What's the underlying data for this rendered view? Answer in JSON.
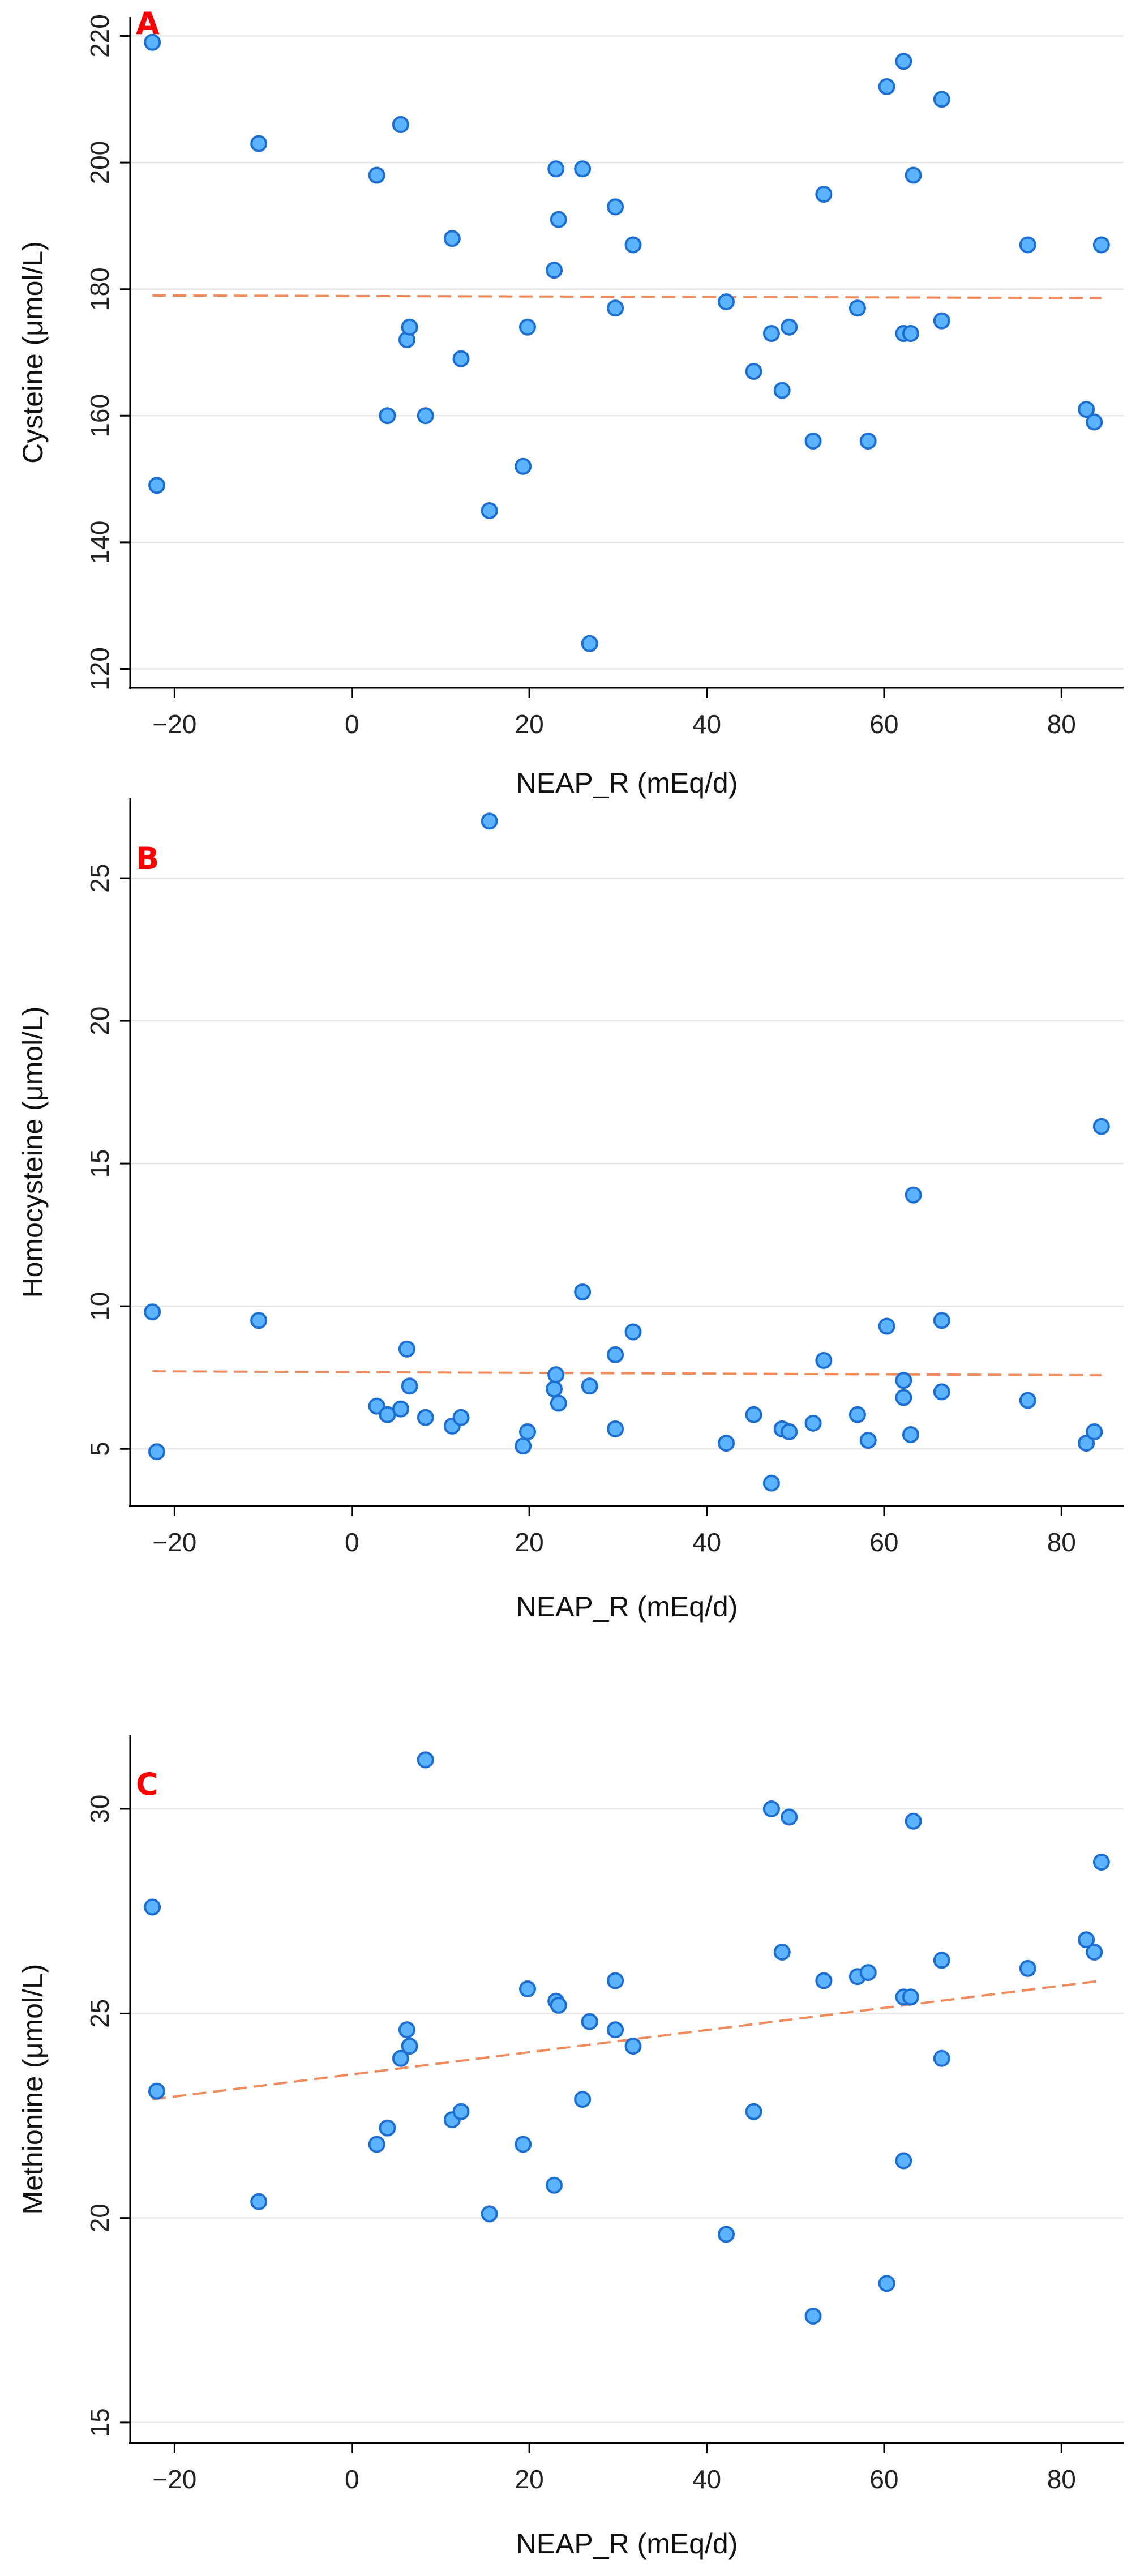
{
  "chart_data": [
    {
      "type": "scatter",
      "panel_label": "A",
      "xlabel": "NEAP_R (mEq/d)",
      "ylabel": "Cysteine (μmol/L)",
      "xlim": [
        -25,
        87
      ],
      "ylim": [
        117,
        223
      ],
      "xticks": [
        -20,
        0,
        20,
        40,
        60,
        80
      ],
      "yticks": [
        120,
        140,
        160,
        180,
        200,
        220
      ],
      "trendline": {
        "x": [
          -22.5,
          84.5
        ],
        "y": [
          179.0,
          178.6
        ],
        "style": "dashed",
        "color": "#f08a5d"
      },
      "points": [
        {
          "x": -22.5,
          "y": 219
        },
        {
          "x": -22.0,
          "y": 149
        },
        {
          "x": -10.5,
          "y": 203
        },
        {
          "x": 2.8,
          "y": 198
        },
        {
          "x": 4.0,
          "y": 160
        },
        {
          "x": 5.5,
          "y": 206
        },
        {
          "x": 6.2,
          "y": 172
        },
        {
          "x": 6.5,
          "y": 174
        },
        {
          "x": 8.3,
          "y": 160
        },
        {
          "x": 11.3,
          "y": 188
        },
        {
          "x": 12.3,
          "y": 169
        },
        {
          "x": 15.5,
          "y": 145
        },
        {
          "x": 19.3,
          "y": 152
        },
        {
          "x": 19.8,
          "y": 174
        },
        {
          "x": 22.8,
          "y": 183
        },
        {
          "x": 23.0,
          "y": 199
        },
        {
          "x": 23.3,
          "y": 191
        },
        {
          "x": 26.0,
          "y": 199
        },
        {
          "x": 26.8,
          "y": 124
        },
        {
          "x": 29.7,
          "y": 193
        },
        {
          "x": 29.7,
          "y": 177
        },
        {
          "x": 31.7,
          "y": 187
        },
        {
          "x": 42.2,
          "y": 178
        },
        {
          "x": 45.3,
          "y": 167
        },
        {
          "x": 47.3,
          "y": 173
        },
        {
          "x": 48.5,
          "y": 164
        },
        {
          "x": 49.3,
          "y": 174
        },
        {
          "x": 52.0,
          "y": 156
        },
        {
          "x": 53.2,
          "y": 195
        },
        {
          "x": 57.0,
          "y": 177
        },
        {
          "x": 58.2,
          "y": 156
        },
        {
          "x": 60.3,
          "y": 212
        },
        {
          "x": 62.2,
          "y": 216
        },
        {
          "x": 62.2,
          "y": 173
        },
        {
          "x": 63.0,
          "y": 173
        },
        {
          "x": 63.3,
          "y": 198
        },
        {
          "x": 66.5,
          "y": 210
        },
        {
          "x": 66.5,
          "y": 175
        },
        {
          "x": 76.2,
          "y": 187
        },
        {
          "x": 82.8,
          "y": 161
        },
        {
          "x": 83.7,
          "y": 159
        },
        {
          "x": 84.5,
          "y": 187
        }
      ]
    },
    {
      "type": "scatter",
      "panel_label": "B",
      "xlabel": "NEAP_R (mEq/d)",
      "ylabel": "Homocysteine (μmol/L)",
      "xlim": [
        -25,
        87
      ],
      "ylim": [
        3.0,
        27.8
      ],
      "xticks": [
        -20,
        0,
        20,
        40,
        60,
        80
      ],
      "yticks": [
        5,
        10,
        15,
        20,
        25
      ],
      "trendline": {
        "x": [
          -22.5,
          84.5
        ],
        "y": [
          7.72,
          7.58
        ],
        "style": "dashed",
        "color": "#f08a5d"
      },
      "points": [
        {
          "x": -22.5,
          "y": 9.8
        },
        {
          "x": -22.0,
          "y": 4.9
        },
        {
          "x": -10.5,
          "y": 9.5
        },
        {
          "x": 2.8,
          "y": 6.5
        },
        {
          "x": 4.0,
          "y": 6.2
        },
        {
          "x": 5.5,
          "y": 6.4
        },
        {
          "x": 6.2,
          "y": 8.5
        },
        {
          "x": 6.5,
          "y": 7.2
        },
        {
          "x": 8.3,
          "y": 6.1
        },
        {
          "x": 11.3,
          "y": 5.8
        },
        {
          "x": 12.3,
          "y": 6.1
        },
        {
          "x": 15.5,
          "y": 27.0
        },
        {
          "x": 19.3,
          "y": 5.1
        },
        {
          "x": 19.8,
          "y": 5.6
        },
        {
          "x": 22.8,
          "y": 7.1
        },
        {
          "x": 23.0,
          "y": 7.6
        },
        {
          "x": 23.3,
          "y": 6.6
        },
        {
          "x": 26.0,
          "y": 10.5
        },
        {
          "x": 26.8,
          "y": 7.2
        },
        {
          "x": 29.7,
          "y": 8.3
        },
        {
          "x": 29.7,
          "y": 5.7
        },
        {
          "x": 31.7,
          "y": 9.1
        },
        {
          "x": 42.2,
          "y": 5.2
        },
        {
          "x": 45.3,
          "y": 6.2
        },
        {
          "x": 47.3,
          "y": 3.8
        },
        {
          "x": 48.5,
          "y": 5.7
        },
        {
          "x": 49.3,
          "y": 5.6
        },
        {
          "x": 52.0,
          "y": 5.9
        },
        {
          "x": 53.2,
          "y": 8.1
        },
        {
          "x": 57.0,
          "y": 6.2
        },
        {
          "x": 58.2,
          "y": 5.3
        },
        {
          "x": 60.3,
          "y": 9.3
        },
        {
          "x": 62.2,
          "y": 7.4
        },
        {
          "x": 62.2,
          "y": 6.8
        },
        {
          "x": 63.0,
          "y": 5.5
        },
        {
          "x": 63.3,
          "y": 13.9
        },
        {
          "x": 66.5,
          "y": 9.5
        },
        {
          "x": 66.5,
          "y": 7.0
        },
        {
          "x": 76.2,
          "y": 6.7
        },
        {
          "x": 82.8,
          "y": 5.2
        },
        {
          "x": 83.7,
          "y": 5.6
        },
        {
          "x": 84.5,
          "y": 16.3
        }
      ]
    },
    {
      "type": "scatter",
      "panel_label": "C",
      "xlabel": "NEAP_R (mEq/d)",
      "ylabel": "Methionine (μmol/L)",
      "xlim": [
        -25,
        87
      ],
      "ylim": [
        14.5,
        31.8
      ],
      "xticks": [
        -20,
        0,
        20,
        40,
        60,
        80
      ],
      "yticks": [
        15,
        20,
        25,
        30
      ],
      "trendline": {
        "x": [
          -22.5,
          84.5
        ],
        "y": [
          22.9,
          25.8
        ],
        "style": "dashed",
        "color": "#f08a5d"
      },
      "points": [
        {
          "x": -22.5,
          "y": 27.6
        },
        {
          "x": -22.0,
          "y": 23.1
        },
        {
          "x": -10.5,
          "y": 20.4
        },
        {
          "x": 2.8,
          "y": 21.8
        },
        {
          "x": 4.0,
          "y": 22.2
        },
        {
          "x": 5.5,
          "y": 23.9
        },
        {
          "x": 6.2,
          "y": 24.6
        },
        {
          "x": 6.5,
          "y": 24.2
        },
        {
          "x": 8.3,
          "y": 31.2
        },
        {
          "x": 11.3,
          "y": 22.4
        },
        {
          "x": 12.3,
          "y": 22.6
        },
        {
          "x": 15.5,
          "y": 20.1
        },
        {
          "x": 19.3,
          "y": 21.8
        },
        {
          "x": 19.8,
          "y": 25.6
        },
        {
          "x": 22.8,
          "y": 20.8
        },
        {
          "x": 23.0,
          "y": 25.3
        },
        {
          "x": 23.3,
          "y": 25.2
        },
        {
          "x": 26.0,
          "y": 22.9
        },
        {
          "x": 26.8,
          "y": 24.8
        },
        {
          "x": 29.7,
          "y": 25.8
        },
        {
          "x": 29.7,
          "y": 24.6
        },
        {
          "x": 31.7,
          "y": 24.2
        },
        {
          "x": 42.2,
          "y": 19.6
        },
        {
          "x": 45.3,
          "y": 22.6
        },
        {
          "x": 47.3,
          "y": 30.0
        },
        {
          "x": 48.5,
          "y": 26.5
        },
        {
          "x": 49.3,
          "y": 29.8
        },
        {
          "x": 52.0,
          "y": 17.6
        },
        {
          "x": 53.2,
          "y": 25.8
        },
        {
          "x": 57.0,
          "y": 25.9
        },
        {
          "x": 58.2,
          "y": 26.0
        },
        {
          "x": 60.3,
          "y": 18.4
        },
        {
          "x": 62.2,
          "y": 25.4
        },
        {
          "x": 62.2,
          "y": 21.4
        },
        {
          "x": 63.0,
          "y": 25.4
        },
        {
          "x": 63.3,
          "y": 29.7
        },
        {
          "x": 66.5,
          "y": 26.3
        },
        {
          "x": 66.5,
          "y": 23.9
        },
        {
          "x": 76.2,
          "y": 26.1
        },
        {
          "x": 82.8,
          "y": 26.8
        },
        {
          "x": 83.7,
          "y": 26.5
        },
        {
          "x": 84.5,
          "y": 28.7
        }
      ]
    }
  ]
}
